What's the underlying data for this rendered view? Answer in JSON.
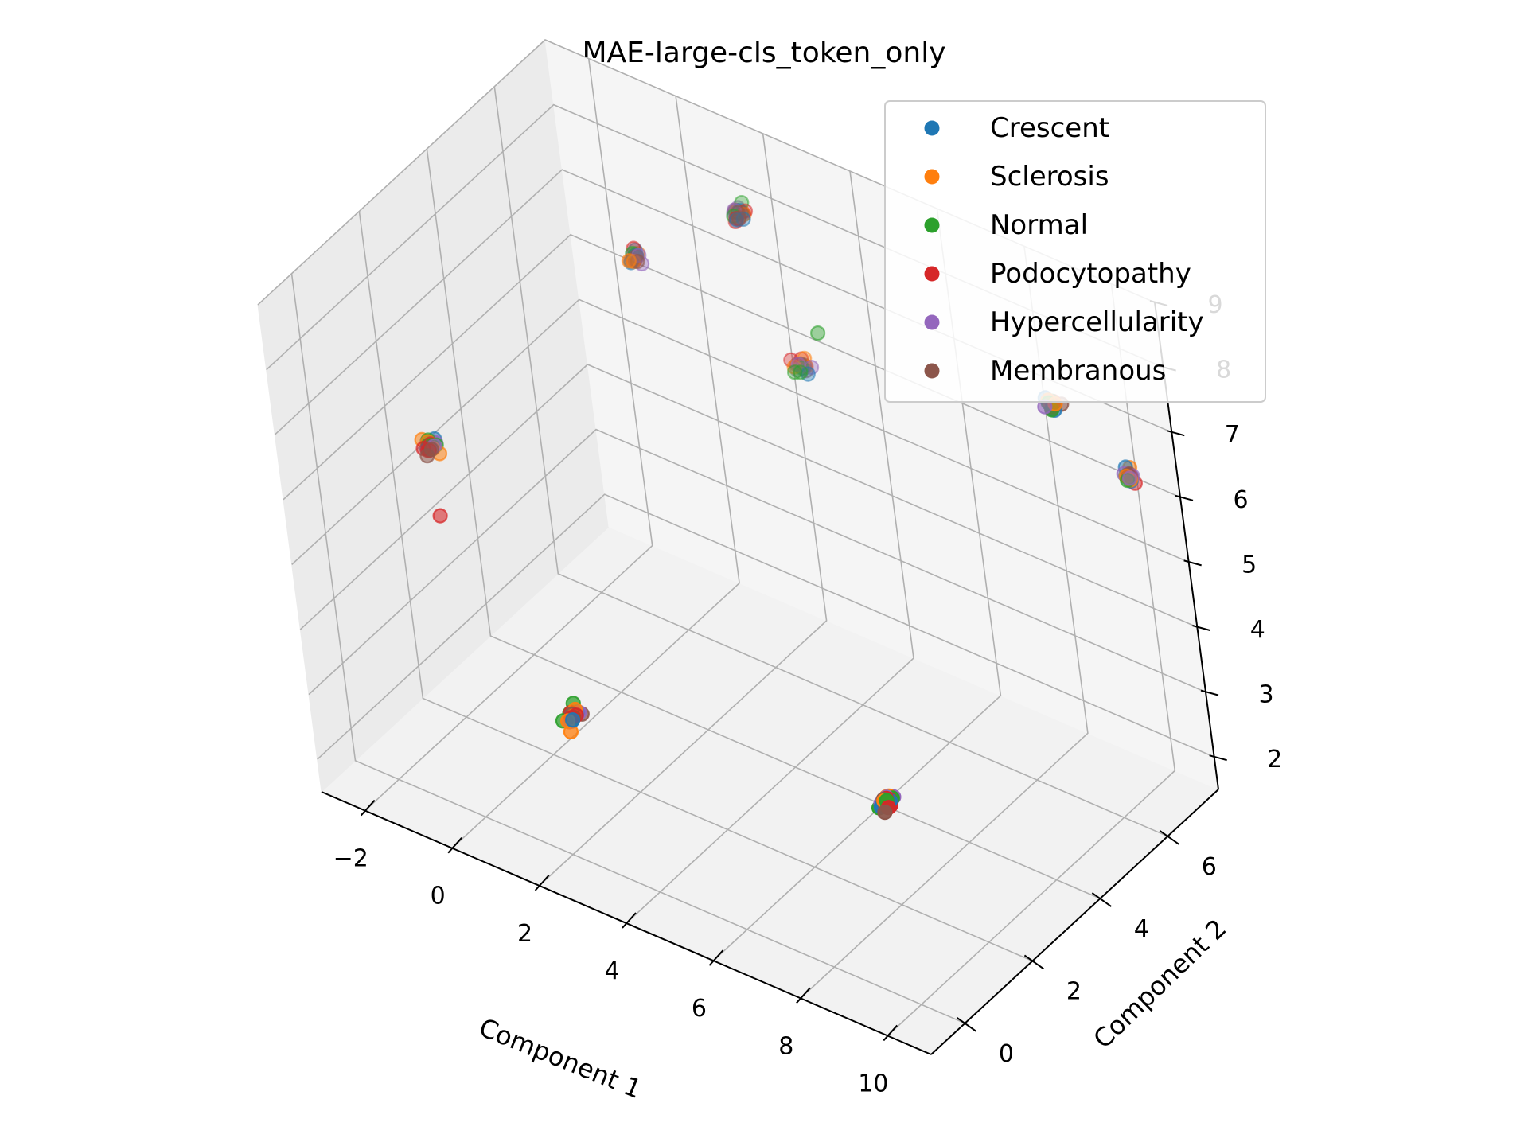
{
  "chart_data": {
    "type": "scatter",
    "projection": "3d",
    "title": "MAE-large-cls_token_only",
    "xlabel": "Component 1",
    "ylabel": "Component 2",
    "zlabel": "",
    "xlim": [
      -3,
      11
    ],
    "ylim": [
      -1,
      7.5
    ],
    "zlim": [
      1.5,
      9
    ],
    "xticks": [
      "−2",
      "0",
      "2",
      "4",
      "6",
      "8",
      "10"
    ],
    "yticks": [
      "0",
      "2",
      "4",
      "6"
    ],
    "zticks": [
      "2",
      "3",
      "4",
      "5",
      "6",
      "7",
      "8",
      "9"
    ],
    "grid": true,
    "legend_placement": "top-right",
    "series": [
      {
        "name": "Crescent",
        "color": "#1f77b4"
      },
      {
        "name": "Sclerosis",
        "color": "#ff7f0e"
      },
      {
        "name": "Normal",
        "color": "#2ca02c"
      },
      {
        "name": "Podocytopathy",
        "color": "#d62728"
      },
      {
        "name": "Hypercellularity",
        "color": "#9467bd"
      },
      {
        "name": "Membranous",
        "color": "#8c564b"
      }
    ],
    "clusters": [
      {
        "x": -2.5,
        "y": 2.5,
        "z": 5.3,
        "n": 22,
        "spread": [
          0.25,
          0.25,
          0.2
        ]
      },
      {
        "x": 1.5,
        "y": 1.0,
        "z": 3.0,
        "n": 20,
        "spread": [
          0.25,
          0.25,
          0.2
        ]
      },
      {
        "x": 2.0,
        "y": 6.6,
        "z": 8.2,
        "n": 22,
        "spread": [
          0.22,
          0.22,
          0.18
        ]
      },
      {
        "x": 0.5,
        "y": 5.3,
        "z": 7.7,
        "n": 18,
        "spread": [
          0.18,
          0.18,
          0.16
        ]
      },
      {
        "x": 2.9,
        "y": 6.8,
        "z": 6.0,
        "n": 18,
        "spread": [
          0.25,
          0.22,
          0.18
        ]
      },
      {
        "x": 10.0,
        "y": 5.5,
        "z": 8.1,
        "n": 18,
        "spread": [
          0.2,
          0.2,
          0.16
        ]
      },
      {
        "x": 10.1,
        "y": 7.2,
        "z": 6.2,
        "n": 18,
        "spread": [
          0.22,
          0.2,
          0.16
        ]
      },
      {
        "x": 8.9,
        "y": 1.0,
        "z": 3.8,
        "n": 24,
        "spread": [
          0.2,
          0.2,
          0.16
        ]
      }
    ],
    "outliers": [
      {
        "x": 3.9,
        "y": 6.2,
        "z": 7.1,
        "series": "Normal"
      },
      {
        "x": -2.0,
        "y": 2.0,
        "z": 4.6,
        "series": "Podocytopathy"
      }
    ]
  }
}
